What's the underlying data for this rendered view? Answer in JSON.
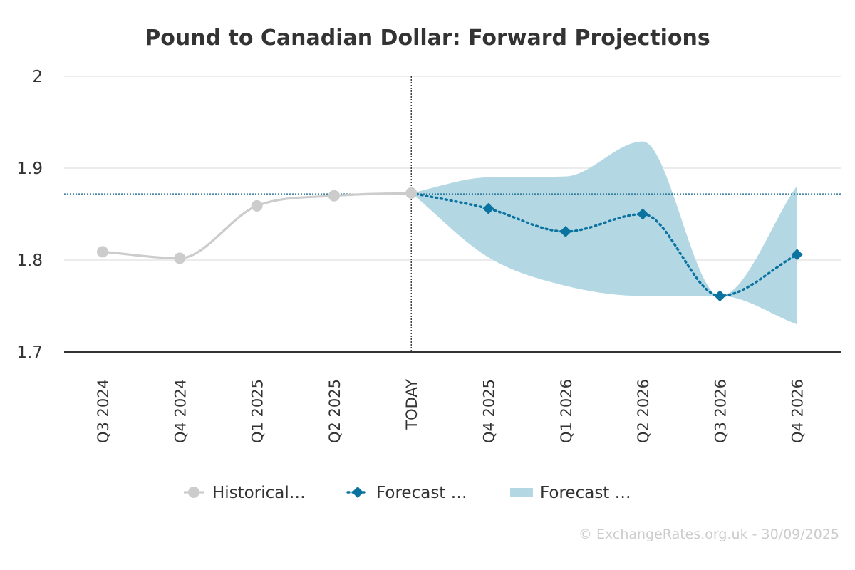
{
  "chart_data": {
    "type": "line",
    "title": "Pound to Canadian Dollar: Forward Projections",
    "categories": [
      "Q3 2024",
      "Q4 2024",
      "Q1 2025",
      "Q2 2025",
      "TODAY",
      "Q4 2025",
      "Q1 2026",
      "Q2 2026",
      "Q3 2026",
      "Q4 2026"
    ],
    "ylim": [
      1.7,
      2.0
    ],
    "yticks": [
      "1.7",
      "1.8",
      "1.9",
      "2"
    ],
    "grid": true,
    "today_category": "TODAY",
    "current_rate_line": 1.872,
    "series": [
      {
        "name": "Historical…",
        "kind": "line",
        "style": "solid",
        "marker": "circle",
        "color": "#cccccc",
        "values": [
          1.809,
          1.802,
          1.859,
          1.87,
          1.873,
          null,
          null,
          null,
          null,
          null
        ]
      },
      {
        "name": "Forecast …",
        "kind": "line",
        "style": "dotted",
        "marker": "diamond",
        "color": "#0a73a0",
        "values": [
          null,
          null,
          null,
          null,
          1.873,
          1.856,
          1.831,
          1.85,
          1.761,
          1.806
        ]
      },
      {
        "name": "Forecast …",
        "kind": "range",
        "color": "#b3d8e4",
        "low": [
          null,
          null,
          null,
          null,
          1.873,
          1.803,
          1.772,
          1.761,
          1.761,
          1.73
        ],
        "high": [
          null,
          null,
          null,
          null,
          1.873,
          1.89,
          1.891,
          1.929,
          1.761,
          1.881
        ]
      }
    ],
    "legend_position": "bottom-center",
    "credit": "© ExchangeRates.org.uk - 30/09/2025"
  }
}
